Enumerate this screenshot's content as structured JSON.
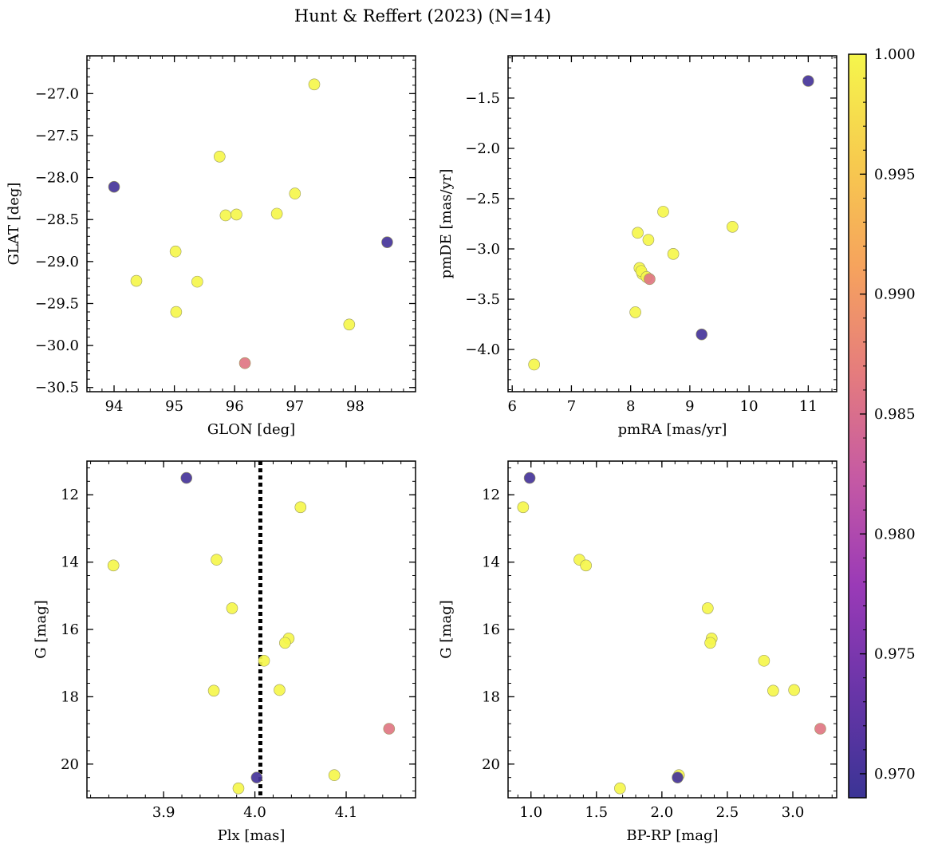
{
  "title": "Hunt & Reffert (2023) (N=14)",
  "colorbar": {
    "min": 0.969,
    "max": 1.0,
    "ticks": [
      0.97,
      0.975,
      0.98,
      0.985,
      0.99,
      0.995,
      1.0
    ],
    "tick_labels": [
      "0.970",
      "0.975",
      "0.980",
      "0.985",
      "0.990",
      "0.995",
      "1.000"
    ],
    "colormap": "plasma",
    "stops": [
      "#3b3495",
      "#6935a8",
      "#9a3ab7",
      "#c559a4",
      "#e57c7d",
      "#f6a35d",
      "#f7cb4e",
      "#f5f64c"
    ]
  },
  "stars": [
    {
      "glon": 94.0,
      "glat": -28.11,
      "pmra": 11.0,
      "pmde": -1.33,
      "plx": 3.925,
      "gmag": 11.5,
      "bprp": 0.99,
      "prob": 0.97
    },
    {
      "glon": 98.53,
      "glat": -28.77,
      "pmra": 9.2,
      "pmde": -3.85,
      "plx": 4.002,
      "gmag": 20.4,
      "bprp": 2.12,
      "prob": 0.97
    },
    {
      "glon": 96.17,
      "glat": -30.21,
      "pmra": 8.32,
      "pmde": -3.3,
      "plx": 4.147,
      "gmag": 18.95,
      "bprp": 3.21,
      "prob": 0.986
    },
    {
      "glon": 97.32,
      "glat": -26.89,
      "pmra": 9.72,
      "pmde": -2.78,
      "plx": 4.05,
      "gmag": 12.37,
      "bprp": 0.94,
      "prob": 1.0
    },
    {
      "glon": 95.75,
      "glat": -27.75,
      "pmra": 8.55,
      "pmde": -2.63,
      "plx": 3.958,
      "gmag": 13.93,
      "bprp": 1.37,
      "prob": 1.0
    },
    {
      "glon": 95.85,
      "glat": -28.45,
      "pmra": 8.3,
      "pmde": -2.91,
      "plx": 3.845,
      "gmag": 14.1,
      "bprp": 1.42,
      "prob": 1.0
    },
    {
      "glon": 96.03,
      "glat": -28.44,
      "pmra": 8.12,
      "pmde": -2.84,
      "plx": 3.975,
      "gmag": 15.37,
      "bprp": 2.35,
      "prob": 1.0
    },
    {
      "glon": 96.7,
      "glat": -28.43,
      "pmra": 8.15,
      "pmde": -3.19,
      "plx": 4.037,
      "gmag": 16.27,
      "bprp": 2.38,
      "prob": 1.0
    },
    {
      "glon": 97.0,
      "glat": -28.19,
      "pmra": 8.72,
      "pmde": -3.05,
      "plx": 4.033,
      "gmag": 16.4,
      "bprp": 2.37,
      "prob": 1.0
    },
    {
      "glon": 95.02,
      "glat": -28.88,
      "pmra": 8.2,
      "pmde": -3.25,
      "plx": 4.01,
      "gmag": 16.93,
      "bprp": 2.78,
      "prob": 1.0
    },
    {
      "glon": 94.37,
      "glat": -29.23,
      "pmra": 8.18,
      "pmde": -3.22,
      "plx": 3.955,
      "gmag": 17.82,
      "bprp": 2.85,
      "prob": 1.0
    },
    {
      "glon": 95.38,
      "glat": -29.24,
      "pmra": 8.27,
      "pmde": -3.28,
      "plx": 4.027,
      "gmag": 17.8,
      "bprp": 3.01,
      "prob": 1.0
    },
    {
      "glon": 95.03,
      "glat": -29.6,
      "pmra": 8.08,
      "pmde": -3.63,
      "plx": 4.087,
      "gmag": 20.33,
      "bprp": 2.13,
      "prob": 1.0
    },
    {
      "glon": 97.9,
      "glat": -29.75,
      "pmra": 6.37,
      "pmde": -4.15,
      "plx": 3.982,
      "gmag": 20.72,
      "bprp": 1.68,
      "prob": 1.0
    }
  ],
  "chart_data": [
    {
      "type": "scatter",
      "xkey": "glon",
      "ykey": "glat",
      "xlabel": "GLON [deg]",
      "ylabel": "GLAT [deg]",
      "xlim": [
        93.55,
        99.0
      ],
      "ylim": [
        -30.55,
        -26.55
      ],
      "xticks": [
        94,
        95,
        96,
        97,
        98
      ],
      "xtick_labels": [
        "94",
        "95",
        "96",
        "97",
        "98"
      ],
      "yticks": [
        -27.0,
        -27.5,
        -28.0,
        -28.5,
        -29.0,
        -29.5,
        -30.0,
        -30.5
      ],
      "ytick_labels": [
        "−27.0",
        "−27.5",
        "−28.0",
        "−28.5",
        "−29.0",
        "−29.5",
        "−30.0",
        "−30.5"
      ],
      "invert_y": false
    },
    {
      "type": "scatter",
      "xkey": "pmra",
      "ykey": "pmde",
      "xlabel": "pmRA [mas/yr]",
      "ylabel": "pmDE [mas/yr]",
      "xlim": [
        5.93,
        11.48
      ],
      "ylim": [
        -4.42,
        -1.08
      ],
      "xticks": [
        6,
        7,
        8,
        9,
        10,
        11
      ],
      "xtick_labels": [
        "6",
        "7",
        "8",
        "9",
        "10",
        "11"
      ],
      "yticks": [
        -1.5,
        -2.0,
        -2.5,
        -3.0,
        -3.5,
        -4.0
      ],
      "ytick_labels": [
        "−1.5",
        "−2.0",
        "−2.5",
        "−3.0",
        "−3.5",
        "−4.0"
      ],
      "invert_y": false
    },
    {
      "type": "scatter",
      "xkey": "plx",
      "ykey": "gmag",
      "xlabel": "Plx [mas]",
      "ylabel": "G [mag]",
      "xlim": [
        3.816,
        4.176
      ],
      "ylim": [
        11.0,
        21.0
      ],
      "xticks": [
        3.9,
        4.0,
        4.1
      ],
      "xtick_labels": [
        "3.9",
        "4.0",
        "4.1"
      ],
      "yticks": [
        12,
        14,
        16,
        18,
        20
      ],
      "ytick_labels": [
        "12",
        "14",
        "16",
        "18",
        "20"
      ],
      "invert_y": true,
      "vline": 4.006
    },
    {
      "type": "scatter",
      "xkey": "bprp",
      "ykey": "gmag",
      "xlabel": "BP-RP [mag]",
      "ylabel": "G [mag]",
      "xlim": [
        0.825,
        3.335
      ],
      "ylim": [
        11.0,
        21.0
      ],
      "xticks": [
        1.0,
        1.5,
        2.0,
        2.5,
        3.0
      ],
      "xtick_labels": [
        "1.0",
        "1.5",
        "2.0",
        "2.5",
        "3.0"
      ],
      "yticks": [
        12,
        14,
        16,
        18,
        20
      ],
      "ytick_labels": [
        "12",
        "14",
        "16",
        "18",
        "20"
      ],
      "invert_y": true
    }
  ]
}
